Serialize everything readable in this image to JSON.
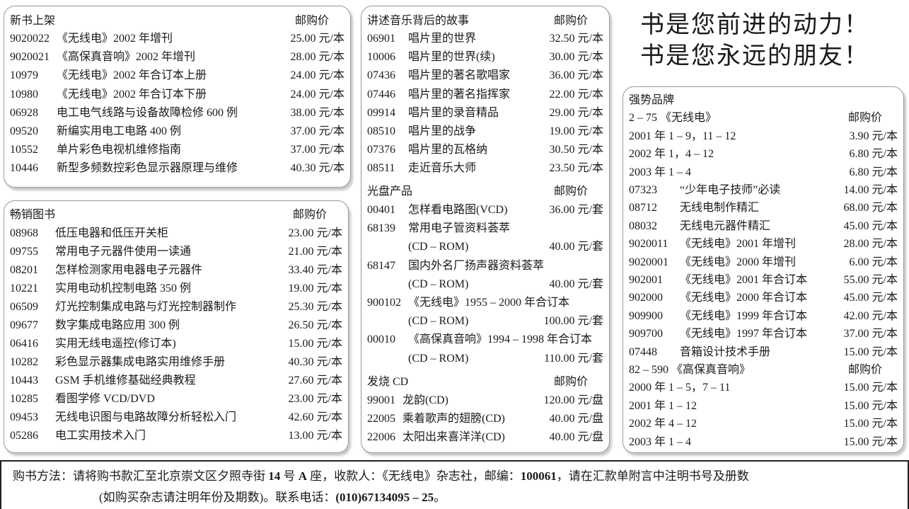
{
  "price_header": "邮购价",
  "new_books": {
    "title": "新书上架",
    "rows": [
      {
        "code": "9020022",
        "title": "《无线电》2002 年增刊",
        "price": "25.00 元/本"
      },
      {
        "code": "9020021",
        "title": "《高保真音响》2002 年增刊",
        "price": "28.00 元/本"
      },
      {
        "code": "10979",
        "title": "《无线电》2002 年合订本上册",
        "price": "24.00 元/本"
      },
      {
        "code": "10980",
        "title": "《无线电》2002 年合订本下册",
        "price": "24.00 元/本"
      },
      {
        "code": "06928",
        "title": "电工电气线路与设备故障检修 600 例",
        "price": "38.00 元/本"
      },
      {
        "code": "09520",
        "title": "新编实用电工电路 400 例",
        "price": "37.00 元/本"
      },
      {
        "code": "10552",
        "title": "单片彩色电视机维修指南",
        "price": "37.00 元/本"
      },
      {
        "code": "10446",
        "title": "新型多频数控彩色显示器原理与维修",
        "price": "40.30 元/本"
      }
    ]
  },
  "bestsellers": {
    "title": "畅销图书",
    "rows": [
      {
        "code": "08968",
        "title": "低压电器和低压开关柜",
        "price": "23.00 元/本"
      },
      {
        "code": "09755",
        "title": "常用电子元器件使用一读通",
        "price": "21.00 元/本"
      },
      {
        "code": "08201",
        "title": "怎样检测家用电器电子元器件",
        "price": "33.40 元/本"
      },
      {
        "code": "10221",
        "title": "实用电动机控制电路 350 例",
        "price": "19.00 元/本"
      },
      {
        "code": "06509",
        "title": "灯光控制集成电路与灯光控制器制作",
        "price": "25.30 元/本"
      },
      {
        "code": "09677",
        "title": "数字集成电路应用 300 例",
        "price": "26.50 元/本"
      },
      {
        "code": "06416",
        "title": "实用无线电遥控(修订本)",
        "price": "15.00 元/本"
      },
      {
        "code": "10282",
        "title": "彩色显示器集成电路实用维修手册",
        "price": "40.30 元/本"
      },
      {
        "code": "10443",
        "title": "GSM 手机维修基础经典教程",
        "price": "27.60 元/本"
      },
      {
        "code": "10285",
        "title": "看图学修 VCD/DVD",
        "price": "23.00 元/本"
      },
      {
        "code": "09453",
        "title": "无线电识图与电路故障分析轻松入门",
        "price": "42.60 元/本"
      },
      {
        "code": "05286",
        "title": "电工实用技术入门",
        "price": "13.00 元/本"
      }
    ]
  },
  "music_stories": {
    "title": "讲述音乐背后的故事",
    "rows": [
      {
        "code": "06901",
        "title": "唱片里的世界",
        "price": "32.50 元/本"
      },
      {
        "code": "10006",
        "title": "唱片里的世界(续)",
        "price": "30.00 元/本"
      },
      {
        "code": "07436",
        "title": "唱片里的著名歌唱家",
        "price": "36.00 元/本"
      },
      {
        "code": "07446",
        "title": "唱片里的著名指挥家",
        "price": "22.00 元/本"
      },
      {
        "code": "09914",
        "title": "唱片里的录音精品",
        "price": "29.00 元/本"
      },
      {
        "code": "08510",
        "title": "唱片里的战争",
        "price": "19.00 元/本"
      },
      {
        "code": "07376",
        "title": "唱片里的瓦格纳",
        "price": "30.50 元/本"
      },
      {
        "code": "08511",
        "title": "走近音乐大师",
        "price": "23.50 元/本"
      }
    ]
  },
  "discs": {
    "title": "光盘产品",
    "rows": [
      {
        "code": "00401",
        "title": "怎样看电路图(VCD)",
        "price": "36.00 元/套"
      },
      {
        "code": "68139",
        "title": "常用电子管资料荟萃",
        "price": ""
      },
      {
        "code": "",
        "title": "(CD – ROM)",
        "price": "40.00 元/套"
      },
      {
        "code": "68147",
        "title": "国内外名厂扬声器资料荟萃",
        "price": ""
      },
      {
        "code": "",
        "title": "(CD – ROM)",
        "price": "40.00 元/套"
      },
      {
        "code": "900102",
        "title": "《无线电》1955 – 2000 年合订本",
        "price": ""
      },
      {
        "code": "",
        "title": "(CD – ROM)",
        "price": "100.00 元/套"
      },
      {
        "code": "00010",
        "title": "《高保真音响》1994 – 1998 年合订本",
        "price": ""
      },
      {
        "code": "",
        "title": "(CD – ROM)",
        "price": "110.00 元/套"
      }
    ]
  },
  "hifi_cd": {
    "title": "发烧 CD",
    "rows": [
      {
        "code": "99001",
        "title": "龙韵(CD)",
        "price": "120.00 元/盘"
      },
      {
        "code": "22005",
        "title": "乘着歌声的翅膀(CD)",
        "price": "40.00 元/盘"
      },
      {
        "code": "22006",
        "title": "太阳出来喜洋洋(CD)",
        "price": "40.00 元/盘"
      }
    ]
  },
  "slogan": {
    "line1": "书是您前进的动力！",
    "line2": "书是您永远的朋友！"
  },
  "brands": {
    "title": "强势品牌",
    "radio_header": "2 – 75 《无线电》",
    "radio_rows": [
      {
        "code": "2001 年 1 – 9，11 – 12",
        "title": "",
        "price": "3.90 元/本"
      },
      {
        "code": "2002 年 1，4 – 12",
        "title": "",
        "price": "6.80 元/本"
      },
      {
        "code": "2003 年 1 – 4",
        "title": "",
        "price": "6.80 元/本"
      },
      {
        "code": "07323",
        "title": "“少年电子技师”必读",
        "price": "14.00 元/本"
      },
      {
        "code": "08712",
        "title": "无线电制作精汇",
        "price": "68.00 元/本"
      },
      {
        "code": "08032",
        "title": "无线电元器件精汇",
        "price": "45.00 元/本"
      },
      {
        "code": "9020011",
        "title": "《无线电》2001 年增刊",
        "price": "28.00 元/本"
      },
      {
        "code": "9020001",
        "title": "《无线电》2000 年增刊",
        "price": "6.00 元/本"
      },
      {
        "code": "902001",
        "title": "《无线电》2001 年合订本",
        "price": "55.00 元/本"
      },
      {
        "code": "902000",
        "title": "《无线电》2000 年合订本",
        "price": "45.00 元/本"
      },
      {
        "code": "909900",
        "title": "《无线电》1999 年合订本",
        "price": "42.00 元/本"
      },
      {
        "code": "909700",
        "title": "《无线电》1997 年合订本",
        "price": "37.00 元/本"
      },
      {
        "code": "07448",
        "title": "音箱设计技术手册",
        "price": "15.00 元/本"
      }
    ],
    "hifi_header": "82 – 590 《高保真音响》",
    "hifi_rows": [
      {
        "code": "2000 年 1 – 5，7 – 11",
        "title": "",
        "price": "15.00 元/本"
      },
      {
        "code": "2001 年 1 – 12",
        "title": "",
        "price": "15.00 元/本"
      },
      {
        "code": "2002 年 4 – 12",
        "title": "",
        "price": "15.00 元/本"
      },
      {
        "code": "2003 年 1 – 4",
        "title": "",
        "price": "15.00 元/本"
      }
    ]
  },
  "footer": {
    "line1_a": "购书方法：请将购书款汇至北京崇文区夕照寺街 ",
    "line1_b": "14",
    "line1_c": " 号 ",
    "line1_d": "A",
    "line1_e": " 座，收款人：《无线电》杂志社，邮编：",
    "line1_f": "100061",
    "line1_g": "，请在汇款单附言中注明书号及册数",
    "line2_a": "(如购买杂志请注明年份及期数)。联系电话：",
    "line2_b": "(010)67134095 – 25",
    "line2_c": "。"
  }
}
